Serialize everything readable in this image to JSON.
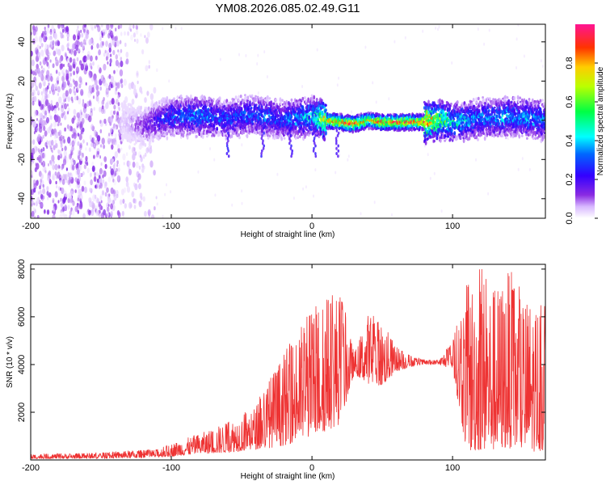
{
  "title": "YM08.2026.085.02.49.G11",
  "chart_data": [
    {
      "type": "heatmap",
      "name": "spectrogram",
      "xlabel": "Height of straight line (km)",
      "ylabel": "Frequency (Hz)",
      "xlim": [
        -200,
        166
      ],
      "ylim": [
        -50,
        49
      ],
      "x_ticks": [
        -200,
        -100,
        0,
        100
      ],
      "y_ticks": [
        -40,
        -20,
        0,
        20,
        40
      ],
      "colorbar": {
        "label": "Normalized spectral amplitude",
        "range": [
          0.0,
          1.0
        ],
        "ticks": [
          "0.0",
          "0.2",
          "0.4",
          "0.6",
          "0.8"
        ],
        "tick_values": [
          0.0,
          0.2,
          0.4,
          0.6,
          0.8
        ],
        "colors": [
          "#e0c8ff",
          "#8a2be2",
          "#4b0082",
          "#0000ff",
          "#00ffff",
          "#00ff00",
          "#ffff00",
          "#ff7f00",
          "#ff0000",
          "#ff1493"
        ]
      },
      "ridge": {
        "x": [
          -135,
          -120,
          -100,
          -80,
          -60,
          -40,
          -20,
          0,
          10,
          20,
          30,
          40,
          50,
          60,
          70,
          80,
          90,
          100,
          120,
          140,
          166
        ],
        "freq": [
          0,
          -3,
          2,
          2,
          1,
          3,
          0,
          2,
          0,
          -1,
          -2,
          0,
          -1,
          -1,
          -1,
          -1,
          0,
          -1,
          1,
          2,
          0
        ],
        "amplitude": [
          0.05,
          0.15,
          0.35,
          0.4,
          0.35,
          0.38,
          0.35,
          0.5,
          0.85,
          0.95,
          0.95,
          0.8,
          0.95,
          0.95,
          0.95,
          0.95,
          0.7,
          0.55,
          0.4,
          0.45,
          0.4
        ]
      },
      "scatter_region_x": [
        -200,
        -110
      ]
    },
    {
      "type": "line",
      "name": "snr",
      "xlabel": "Height of straight line (km)",
      "ylabel": "SNR (10 * v/v)",
      "xlim": [
        -200,
        166
      ],
      "ylim": [
        0,
        8200
      ],
      "x_ticks": [
        -200,
        -100,
        0,
        100
      ],
      "y_ticks": [
        2000,
        4000,
        6000,
        8000
      ],
      "color": "#ee3333",
      "envelope": {
        "x": [
          -200,
          -150,
          -130,
          -110,
          -100,
          -80,
          -60,
          -40,
          -30,
          -20,
          -10,
          0,
          10,
          20,
          30,
          40,
          50,
          60,
          70,
          80,
          90,
          100,
          110,
          120,
          130,
          140,
          150,
          166
        ],
        "low": [
          50,
          60,
          80,
          100,
          150,
          250,
          300,
          450,
          500,
          600,
          800,
          1000,
          1200,
          1500,
          3600,
          3200,
          3100,
          3700,
          3900,
          4000,
          4000,
          3800,
          300,
          400,
          400,
          500,
          300,
          400
        ],
        "high": [
          250,
          300,
          400,
          450,
          700,
          1100,
          1600,
          2300,
          3500,
          4500,
          5500,
          6500,
          7000,
          7200,
          4500,
          6200,
          5800,
          4800,
          4400,
          4200,
          4200,
          5000,
          7400,
          8100,
          7200,
          8100,
          7000,
          6500
        ]
      }
    }
  ]
}
